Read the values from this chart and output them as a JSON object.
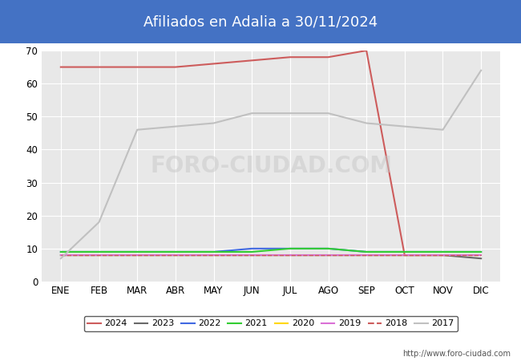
{
  "title": "Afiliados en Adalia a 30/11/2024",
  "title_bg_color": "#4472c4",
  "title_text_color": "#ffffff",
  "xlabel": "",
  "ylabel": "",
  "ylim": [
    0,
    70
  ],
  "yticks": [
    0,
    10,
    20,
    30,
    40,
    50,
    60,
    70
  ],
  "months": [
    "ENE",
    "FEB",
    "MAR",
    "ABR",
    "MAY",
    "JUN",
    "JUL",
    "AGO",
    "SEP",
    "OCT",
    "NOV",
    "DIC"
  ],
  "watermark": "FORO-CIUDAD.COM",
  "url": "http://www.foro-ciudad.com",
  "series": {
    "2024": {
      "color": "#cd5c5c",
      "data": [
        65,
        65,
        65,
        65,
        66,
        67,
        68,
        68,
        70,
        8,
        8,
        null
      ],
      "linewidth": 1.5
    },
    "2023": {
      "color": "#696969",
      "data": [
        8,
        8,
        8,
        8,
        8,
        8,
        8,
        8,
        8,
        8,
        8,
        7
      ],
      "linewidth": 1.5
    },
    "2022": {
      "color": "#4169e1",
      "data": [
        9,
        9,
        9,
        9,
        9,
        10,
        10,
        10,
        9,
        9,
        9,
        9
      ],
      "linewidth": 1.5
    },
    "2021": {
      "color": "#32cd32",
      "data": [
        9,
        9,
        9,
        9,
        9,
        9,
        10,
        10,
        9,
        9,
        9,
        9
      ],
      "linewidth": 1.5
    },
    "2020": {
      "color": "#ffd700",
      "data": [
        8,
        8,
        8,
        8,
        8,
        8,
        8,
        8,
        8,
        8,
        8,
        8
      ],
      "linewidth": 1.5
    },
    "2019": {
      "color": "#da70d6",
      "data": [
        8,
        8,
        8,
        8,
        8,
        8,
        8,
        8,
        8,
        8,
        8,
        8
      ],
      "linewidth": 1.5
    },
    "2018": {
      "color": "#cd5c5c",
      "data": [
        8,
        8,
        8,
        8,
        8,
        8,
        8,
        8,
        8,
        8,
        8,
        8
      ],
      "linewidth": 1.0,
      "dashed": true
    },
    "2017": {
      "color": "#c0c0c0",
      "data": [
        7,
        18,
        46,
        47,
        48,
        51,
        51,
        51,
        48,
        47,
        46,
        64
      ],
      "linewidth": 1.5
    }
  },
  "background_color": "#e8e8e8",
  "plot_bg_color": "#e8e8e8",
  "grid_color": "#ffffff",
  "legend_order": [
    "2024",
    "2023",
    "2022",
    "2021",
    "2020",
    "2019",
    "2018",
    "2017"
  ]
}
